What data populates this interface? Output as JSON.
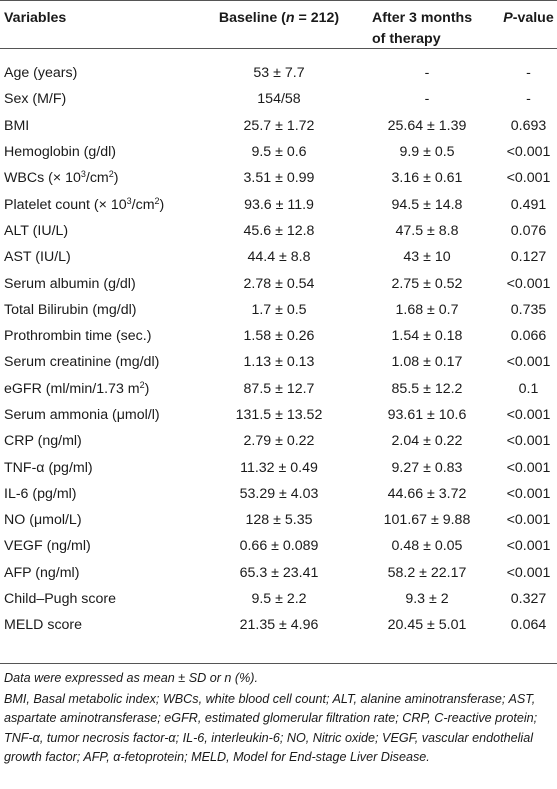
{
  "table": {
    "headers": {
      "variables": "Variables",
      "baseline_pre": "Baseline (",
      "baseline_n": "n",
      "baseline_post": " = 212)",
      "after_line1": "After 3 months",
      "after_line2": "of therapy",
      "p_italic": "P",
      "p_rest": "-value"
    },
    "rows": [
      {
        "variable": "Age (years)",
        "baseline": "53 ± 7.7",
        "after": "-",
        "p": "-"
      },
      {
        "variable": "Sex (M/F)",
        "baseline": "154/58",
        "after": "-",
        "p": "-"
      },
      {
        "variable": "BMI",
        "baseline": "25.7 ± 1.72",
        "after": "25.64 ± 1.39",
        "p": "0.693"
      },
      {
        "variable": "Hemoglobin (g/dl)",
        "baseline": "9.5 ± 0.6",
        "after": "9.9 ± 0.5",
        "p": "<0.001"
      },
      {
        "variable_pre": "WBCs (× 10",
        "variable_sup1": "3",
        "variable_mid": "/cm",
        "variable_sup2": "2",
        "variable_post": ")",
        "baseline": "3.51 ± 0.99",
        "after": "3.16 ± 0.61",
        "p": "<0.001"
      },
      {
        "variable_pre": "Platelet count (× 10",
        "variable_sup1": "3",
        "variable_mid": "/cm",
        "variable_sup2": "2",
        "variable_post": ")",
        "baseline": "93.6 ± 11.9",
        "after": "94.5 ± 14.8",
        "p": "0.491"
      },
      {
        "variable": "ALT (IU/L)",
        "baseline": "45.6 ± 12.8",
        "after": "47.5 ± 8.8",
        "p": "0.076"
      },
      {
        "variable": "AST (IU/L)",
        "baseline": "44.4 ± 8.8",
        "after": "43 ± 10",
        "p": "0.127"
      },
      {
        "variable": "Serum albumin (g/dl)",
        "baseline": "2.78 ± 0.54",
        "after": "2.75 ± 0.52",
        "p": "<0.001"
      },
      {
        "variable": "Total Bilirubin (mg/dl)",
        "baseline": "1.7 ± 0.5",
        "after": "1.68 ± 0.7",
        "p": "0.735"
      },
      {
        "variable": "Prothrombin time (sec.)",
        "baseline": "1.58 ± 0.26",
        "after": "1.54 ± 0.18",
        "p": "0.066"
      },
      {
        "variable": "Serum creatinine (mg/dl)",
        "baseline": "1.13 ± 0.13",
        "after": "1.08 ± 0.17",
        "p": "<0.001"
      },
      {
        "variable_pre": "eGFR (ml/min/1.73 m",
        "variable_sup2": "2",
        "variable_post": ")",
        "baseline": "87.5 ± 12.7",
        "after": "85.5 ± 12.2",
        "p": "0.1"
      },
      {
        "variable": "Serum ammonia (μmol/l)",
        "baseline": "131.5 ± 13.52",
        "after": "93.61 ± 10.6",
        "p": "<0.001"
      },
      {
        "variable": "CRP (ng/ml)",
        "baseline": "2.79 ± 0.22",
        "after": "2.04 ± 0.22",
        "p": "<0.001"
      },
      {
        "variable": "TNF-α (pg/ml)",
        "baseline": "11.32 ± 0.49",
        "after": "9.27 ± 0.83",
        "p": "<0.001"
      },
      {
        "variable": "IL-6 (pg/ml)",
        "baseline": "53.29 ± 4.03",
        "after": "44.66 ± 3.72",
        "p": "<0.001"
      },
      {
        "variable": "NO (μmol/L)",
        "baseline": "128 ± 5.35",
        "after": "101.67 ± 9.88",
        "p": "<0.001"
      },
      {
        "variable": "VEGF (ng/ml)",
        "baseline": "0.66 ± 0.089",
        "after": "0.48 ± 0.05",
        "p": "<0.001"
      },
      {
        "variable": "AFP (ng/ml)",
        "baseline": "65.3 ± 23.41",
        "after": "58.2 ± 22.17",
        "p": "<0.001"
      },
      {
        "variable": "Child–Pugh score",
        "baseline": "9.5 ± 2.2",
        "after": "9.3 ± 2",
        "p": "0.327"
      },
      {
        "variable": "MELD score",
        "baseline": "21.35 ± 4.96",
        "after": "20.45 ± 5.01",
        "p": "0.064"
      }
    ]
  },
  "notes": {
    "line1": "Data were expressed as mean ± SD or n (%).",
    "line2": "BMI, Basal metabolic index; WBCs, white blood cell count; ALT, alanine aminotransferase; AST, aspartate aminotransferase; eGFR, estimated glomerular filtration rate; CRP, C-reactive protein; TNF-α, tumor necrosis factor-α; IL-6, interleukin-6; NO, Nitric oxide; VEGF, vascular endothelial growth factor; AFP, α-fetoprotein; MELD, Model for End-stage Liver Disease."
  }
}
